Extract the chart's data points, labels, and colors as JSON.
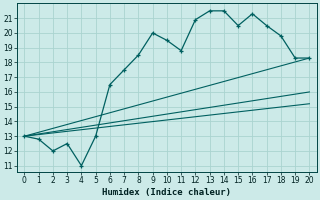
{
  "title": "",
  "xlabel": "Humidex (Indice chaleur)",
  "bg_color": "#cceae8",
  "grid_color": "#aad4d0",
  "line_color": "#006060",
  "xlim": [
    -0.5,
    20.5
  ],
  "ylim": [
    10.6,
    22.0
  ],
  "yticks": [
    11,
    12,
    13,
    14,
    15,
    16,
    17,
    18,
    19,
    20,
    21
  ],
  "xticks": [
    0,
    1,
    2,
    3,
    4,
    5,
    6,
    7,
    8,
    9,
    10,
    11,
    12,
    13,
    14,
    15,
    16,
    17,
    18,
    19,
    20
  ],
  "line1_x": [
    0,
    1,
    2,
    3,
    4,
    5,
    6,
    7,
    8,
    9,
    10,
    11,
    12,
    13,
    14,
    15,
    16,
    17,
    18,
    19,
    20
  ],
  "line1_y": [
    13.0,
    12.8,
    12.0,
    12.5,
    11.0,
    13.0,
    16.5,
    17.5,
    18.5,
    20.0,
    19.5,
    18.8,
    20.9,
    21.5,
    21.5,
    20.5,
    21.3,
    20.5,
    19.8,
    18.3,
    18.3
  ],
  "line2_x": [
    0,
    20
  ],
  "line2_y": [
    13.0,
    18.3
  ],
  "line3_x": [
    0,
    20
  ],
  "line3_y": [
    13.0,
    16.0
  ],
  "line4_x": [
    0,
    20
  ],
  "line4_y": [
    13.0,
    15.2
  ],
  "tick_fontsize": 5.5,
  "xlabel_fontsize": 6.5
}
